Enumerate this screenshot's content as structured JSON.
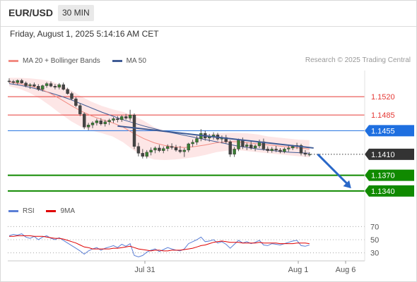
{
  "header": {
    "symbol": "EUR/USD",
    "interval": "30 MIN"
  },
  "timestamp": "Friday, August 1, 2025 5:14:16 AM CET",
  "legend": {
    "ma20": {
      "label": "MA 20 + Bollinger Bands",
      "color": "#f28b82"
    },
    "ma50": {
      "label": "MA 50",
      "color": "#3f5b95"
    }
  },
  "research": "Research © 2025 Trading Central",
  "rsi_legend": {
    "rsi": {
      "label": "RSI",
      "color": "#5b7fd6"
    },
    "ma9": {
      "label": "9MA",
      "color": "#e00000"
    }
  },
  "chart_data": [
    {
      "type": "candlestick",
      "x_tick_labels": [
        "Jul 31",
        "Aug 1",
        "Aug 6"
      ],
      "ylim": [
        1.1325,
        1.157
      ],
      "levels": [
        {
          "value": 1.152,
          "label": "1.1520",
          "color": "#e53935",
          "style": "line",
          "kind": "resistance"
        },
        {
          "value": 1.1485,
          "label": "1.1485",
          "color": "#e53935",
          "style": "line",
          "kind": "resistance"
        },
        {
          "value": 1.1455,
          "label": "1.1455",
          "color": "#1e6fe0",
          "style": "line-box",
          "kind": "pivot"
        },
        {
          "value": 1.141,
          "label": "1.1410",
          "color": "#333333",
          "style": "dotted-box",
          "kind": "last"
        },
        {
          "value": 1.137,
          "label": "1.1370",
          "color": "#108a00",
          "style": "line-box",
          "kind": "support"
        },
        {
          "value": 1.134,
          "label": "1.1340",
          "color": "#108a00",
          "style": "line-box",
          "kind": "support"
        }
      ],
      "candles": [
        [
          1.155,
          1.1555,
          1.1546,
          1.1549
        ],
        [
          1.1549,
          1.1552,
          1.1544,
          1.1547
        ],
        [
          1.1547,
          1.1553,
          1.1543,
          1.1551
        ],
        [
          1.1551,
          1.1554,
          1.1545,
          1.1546
        ],
        [
          1.1546,
          1.1549,
          1.1538,
          1.1541
        ],
        [
          1.1541,
          1.1546,
          1.1535,
          1.1543
        ],
        [
          1.1543,
          1.1547,
          1.1538,
          1.154
        ],
        [
          1.154,
          1.1544,
          1.1531,
          1.1534
        ],
        [
          1.1534,
          1.1543,
          1.153,
          1.1541
        ],
        [
          1.1541,
          1.1548,
          1.1537,
          1.1545
        ],
        [
          1.1545,
          1.1549,
          1.1538,
          1.154
        ],
        [
          1.154,
          1.1544,
          1.1534,
          1.1538
        ],
        [
          1.1538,
          1.1546,
          1.1534,
          1.1543
        ],
        [
          1.1543,
          1.1547,
          1.1532,
          1.1534
        ],
        [
          1.1534,
          1.1537,
          1.1524,
          1.1526
        ],
        [
          1.1526,
          1.1529,
          1.1513,
          1.1516
        ],
        [
          1.1516,
          1.1519,
          1.15,
          1.1503
        ],
        [
          1.1503,
          1.1507,
          1.1483,
          1.1487
        ],
        [
          1.1487,
          1.149,
          1.1458,
          1.1462
        ],
        [
          1.1462,
          1.147,
          1.1456,
          1.1466
        ],
        [
          1.1466,
          1.1473,
          1.146,
          1.147
        ],
        [
          1.147,
          1.1478,
          1.1465,
          1.1474
        ],
        [
          1.1474,
          1.1479,
          1.1465,
          1.1468
        ],
        [
          1.1468,
          1.1476,
          1.1463,
          1.1472
        ],
        [
          1.1472,
          1.1478,
          1.1466,
          1.1475
        ],
        [
          1.1475,
          1.1481,
          1.147,
          1.1478
        ],
        [
          1.1478,
          1.1483,
          1.1471,
          1.1476
        ],
        [
          1.1476,
          1.1485,
          1.1472,
          1.1482
        ],
        [
          1.1482,
          1.1487,
          1.1476,
          1.1479
        ],
        [
          1.1479,
          1.1495,
          1.1474,
          1.1485
        ],
        [
          1.1485,
          1.1488,
          1.142,
          1.1425
        ],
        [
          1.1425,
          1.1432,
          1.1406,
          1.1412
        ],
        [
          1.1412,
          1.142,
          1.1402,
          1.1406
        ],
        [
          1.1406,
          1.1418,
          1.1402,
          1.1414
        ],
        [
          1.1414,
          1.1423,
          1.1408,
          1.1418
        ],
        [
          1.1418,
          1.1425,
          1.1412,
          1.1422
        ],
        [
          1.1422,
          1.1428,
          1.1414,
          1.1417
        ],
        [
          1.1417,
          1.1425,
          1.1412,
          1.1421
        ],
        [
          1.1421,
          1.1429,
          1.1416,
          1.1425
        ],
        [
          1.1425,
          1.1431,
          1.1419,
          1.1423
        ],
        [
          1.1423,
          1.1428,
          1.1415,
          1.1418
        ],
        [
          1.1418,
          1.1426,
          1.1412,
          1.1415
        ],
        [
          1.1415,
          1.1422,
          1.1405,
          1.1418
        ],
        [
          1.1418,
          1.1432,
          1.1414,
          1.143
        ],
        [
          1.143,
          1.1438,
          1.1424,
          1.1433
        ],
        [
          1.1433,
          1.1445,
          1.1428,
          1.144
        ],
        [
          1.144,
          1.1458,
          1.1435,
          1.145
        ],
        [
          1.145,
          1.1455,
          1.1436,
          1.1441
        ],
        [
          1.1441,
          1.1449,
          1.1434,
          1.1444
        ],
        [
          1.1444,
          1.1452,
          1.1438,
          1.1447
        ],
        [
          1.1447,
          1.1451,
          1.1436,
          1.1439
        ],
        [
          1.1439,
          1.1446,
          1.1431,
          1.1442
        ],
        [
          1.1442,
          1.1447,
          1.143,
          1.1434
        ],
        [
          1.1434,
          1.1437,
          1.1405,
          1.141
        ],
        [
          1.141,
          1.1424,
          1.1405,
          1.142
        ],
        [
          1.142,
          1.144,
          1.1416,
          1.1437
        ],
        [
          1.1437,
          1.1442,
          1.142,
          1.1425
        ],
        [
          1.1425,
          1.1432,
          1.1418,
          1.1428
        ],
        [
          1.1428,
          1.1434,
          1.1419,
          1.1422
        ],
        [
          1.1422,
          1.1429,
          1.1416,
          1.1426
        ],
        [
          1.1426,
          1.1438,
          1.1422,
          1.1434
        ],
        [
          1.1434,
          1.144,
          1.1417,
          1.142
        ],
        [
          1.142,
          1.1425,
          1.1413,
          1.1417
        ],
        [
          1.1417,
          1.1424,
          1.1413,
          1.142
        ],
        [
          1.142,
          1.1426,
          1.1414,
          1.1418
        ],
        [
          1.1418,
          1.1422,
          1.1412,
          1.1415
        ],
        [
          1.1415,
          1.1423,
          1.1412,
          1.142
        ],
        [
          1.142,
          1.1426,
          1.1415,
          1.1422
        ],
        [
          1.1422,
          1.1428,
          1.1418,
          1.1425
        ],
        [
          1.1425,
          1.1432,
          1.142,
          1.1427
        ],
        [
          1.1427,
          1.143,
          1.1408,
          1.1412
        ],
        [
          1.1412,
          1.1418,
          1.1406,
          1.141
        ],
        [
          1.141,
          1.1414,
          1.1406,
          1.141
        ]
      ],
      "ma50": [
        1.1545,
        1.1542,
        1.1538,
        1.1533,
        1.1527,
        1.1521,
        1.1514,
        1.1506,
        1.1498,
        1.149,
        1.1483,
        1.1476,
        1.147,
        1.1464,
        1.1459,
        1.1454,
        1.145,
        1.1446,
        1.1442,
        1.1438,
        1.1434,
        1.143,
        1.1426,
        1.1423,
        1.142,
        1.1418,
        1.1416,
        1.1414,
        1.1413,
        1.1412
      ],
      "ma20": [
        1.1548,
        1.1545,
        1.1541,
        1.1535,
        1.1526,
        1.1515,
        1.1503,
        1.1492,
        1.1483,
        1.1476,
        1.147,
        1.1462,
        1.145,
        1.144,
        1.1432,
        1.1427,
        1.1424,
        1.1423,
        1.1425,
        1.1428,
        1.1432,
        1.1434,
        1.1434,
        1.1432,
        1.143,
        1.1428,
        1.1426,
        1.1424,
        1.1422,
        1.142
      ],
      "bb_upper": [
        1.1556,
        1.1556,
        1.1555,
        1.1553,
        1.155,
        1.1542,
        1.1532,
        1.152,
        1.151,
        1.1502,
        1.1496,
        1.1491,
        1.1484,
        1.1474,
        1.1462,
        1.1455,
        1.1449,
        1.1446,
        1.1446,
        1.1448,
        1.145,
        1.1451,
        1.1451,
        1.145,
        1.1448,
        1.1444,
        1.1442,
        1.144,
        1.1438,
        1.1437
      ],
      "bb_lower": [
        1.154,
        1.1535,
        1.1527,
        1.1516,
        1.1502,
        1.1487,
        1.1473,
        1.1462,
        1.1455,
        1.145,
        1.1444,
        1.1433,
        1.1418,
        1.1406,
        1.14,
        1.1399,
        1.14,
        1.1402,
        1.1405,
        1.1409,
        1.1414,
        1.1417,
        1.1418,
        1.1416,
        1.1414,
        1.1412,
        1.141,
        1.1408,
        1.1406,
        1.1404
      ],
      "trendline": {
        "from": [
          26,
          1.1464
        ],
        "to": [
          73,
          1.1422
        ]
      },
      "projection_arrow": {
        "from": [
          74,
          1.141
        ],
        "to": [
          82,
          1.1345
        ]
      }
    },
    {
      "type": "line",
      "name": "RSI",
      "yticks": [
        30,
        50,
        70
      ],
      "ylim": [
        20,
        80
      ],
      "series": [
        {
          "name": "RSI",
          "color": "#5b7fd6",
          "values": [
            56,
            58,
            57,
            59,
            54,
            52,
            55,
            50,
            54,
            56,
            52,
            50,
            53,
            49,
            45,
            41,
            37,
            33,
            28,
            33,
            36,
            38,
            34,
            37,
            39,
            41,
            38,
            43,
            40,
            44,
            26,
            24,
            26,
            31,
            34,
            36,
            32,
            35,
            38,
            36,
            34,
            33,
            36,
            44,
            47,
            50,
            54,
            47,
            48,
            50,
            45,
            47,
            43,
            37,
            43,
            49,
            45,
            47,
            44,
            46,
            49,
            42,
            41,
            44,
            43,
            42,
            44,
            46,
            48,
            49,
            41,
            40,
            42
          ]
        },
        {
          "name": "9MA",
          "color": "#e00000",
          "values": [
            55,
            55,
            56,
            56,
            56,
            56,
            55,
            55,
            55,
            54,
            53,
            52,
            52,
            51,
            49,
            47,
            45,
            42,
            39,
            38,
            36,
            36,
            36,
            36,
            36,
            37,
            37,
            38,
            39,
            40,
            38,
            36,
            35,
            34,
            33,
            34,
            34,
            33,
            33,
            34,
            34,
            34,
            35,
            36,
            37,
            39,
            41,
            42,
            44,
            46,
            47,
            48,
            47,
            46,
            46,
            46,
            45,
            45,
            45,
            45,
            46,
            45,
            45,
            45,
            45,
            44,
            44,
            44,
            44,
            45,
            45,
            45,
            44
          ]
        }
      ]
    }
  ]
}
